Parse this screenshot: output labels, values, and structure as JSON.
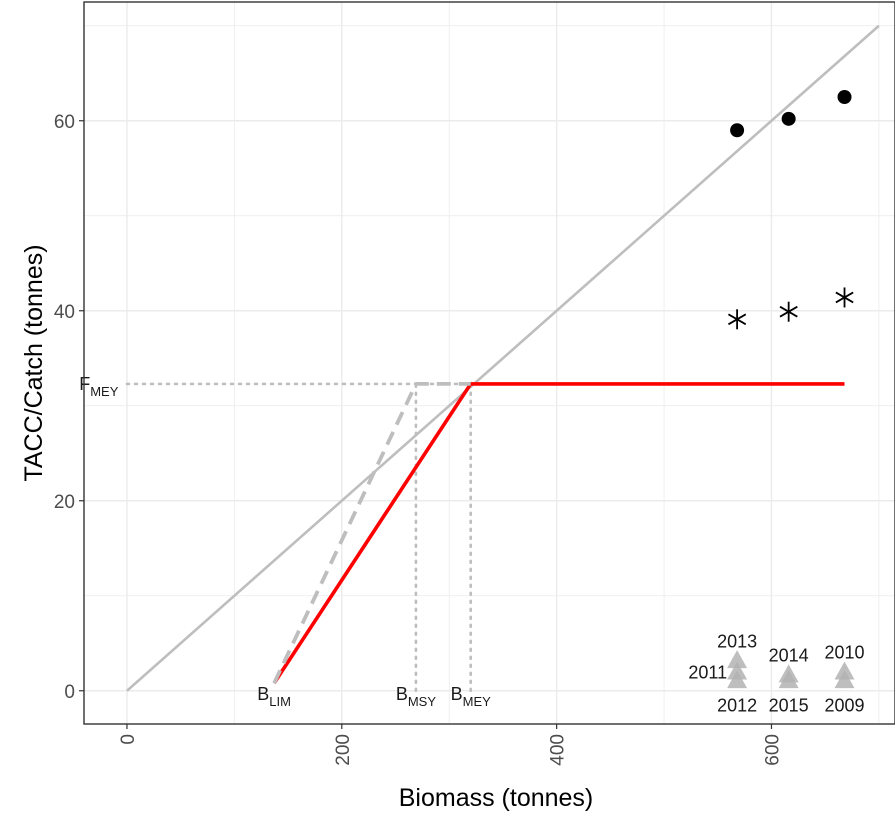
{
  "chart_data": {
    "type": "scatter",
    "xlabel": "Biomass (tonnes)",
    "ylabel": "TACC/Catch (tonnes)",
    "xlim": [
      -40,
      715
    ],
    "ylim": [
      -3.5,
      72.5
    ],
    "x_ticks": [
      0,
      200,
      400,
      600
    ],
    "x_tick_labels": [
      "0",
      "200",
      "400",
      "600"
    ],
    "y_ticks": [
      0,
      20,
      40,
      60
    ],
    "y_tick_labels": [
      "0",
      "20",
      "40",
      "60"
    ],
    "grid": true,
    "colors": {
      "harvest_rule": "#ff0000",
      "reference": "#bebebe",
      "points": "#000000",
      "triangles": "#b3b3b3",
      "grid": "#ebebeb"
    },
    "series": [
      {
        "kind": "line",
        "style": "solid",
        "color": "#bebebe",
        "x": [
          0,
          700
        ],
        "y": [
          0,
          70
        ]
      },
      {
        "kind": "line",
        "style": "solid",
        "color": "#ff0000",
        "x": [
          137,
          320,
          668
        ],
        "y": [
          0.8,
          32.3,
          32.3
        ]
      },
      {
        "kind": "line",
        "style": "dashed",
        "color": "#bebebe",
        "x": [
          137,
          269,
          320
        ],
        "y": [
          0.8,
          32.3,
          32.3
        ]
      },
      {
        "kind": "points",
        "marker": "circle",
        "x": [
          568,
          616,
          668
        ],
        "y": [
          59.0,
          60.2,
          62.5
        ]
      },
      {
        "kind": "points",
        "marker": "asterisk",
        "x": [
          568,
          616,
          668
        ],
        "y": [
          39.1,
          39.9,
          41.4
        ]
      },
      {
        "kind": "points",
        "marker": "triangle",
        "x": [
          568,
          568,
          568,
          616,
          616,
          668,
          668
        ],
        "y": [
          3.1,
          1.9,
          1.0,
          1.6,
          1.0,
          1.9,
          1.0
        ]
      }
    ],
    "reference_lines": [
      {
        "orientation": "horizontal",
        "y": 32.3,
        "x_from": 0,
        "x_to": 320
      },
      {
        "orientation": "vertical",
        "x": 269,
        "y_from": 0,
        "y_to": 32.3
      },
      {
        "orientation": "vertical",
        "x": 320,
        "y_from": 0,
        "y_to": 32.3
      }
    ],
    "reference_labels": [
      {
        "main": "F",
        "sub": "MEY",
        "x": -2,
        "y": 32.3
      },
      {
        "main": "B",
        "sub": "LIM",
        "x": 137,
        "y": 0
      },
      {
        "main": "B",
        "sub": "MSY",
        "x": 269,
        "y": 0
      },
      {
        "main": "B",
        "sub": "MEY",
        "x": 320,
        "y": 0
      }
    ],
    "year_labels": [
      {
        "text": "2013",
        "x": 568,
        "y": 3.1,
        "anchor": "above"
      },
      {
        "text": "2011",
        "x": 568,
        "y": 1.9,
        "anchor": "left"
      },
      {
        "text": "2012",
        "x": 568,
        "y": 1.0,
        "anchor": "below"
      },
      {
        "text": "2014",
        "x": 616,
        "y": 1.6,
        "anchor": "above"
      },
      {
        "text": "2015",
        "x": 616,
        "y": 1.0,
        "anchor": "below"
      },
      {
        "text": "2010",
        "x": 668,
        "y": 1.9,
        "anchor": "above"
      },
      {
        "text": "2009",
        "x": 668,
        "y": 1.0,
        "anchor": "below"
      }
    ]
  }
}
